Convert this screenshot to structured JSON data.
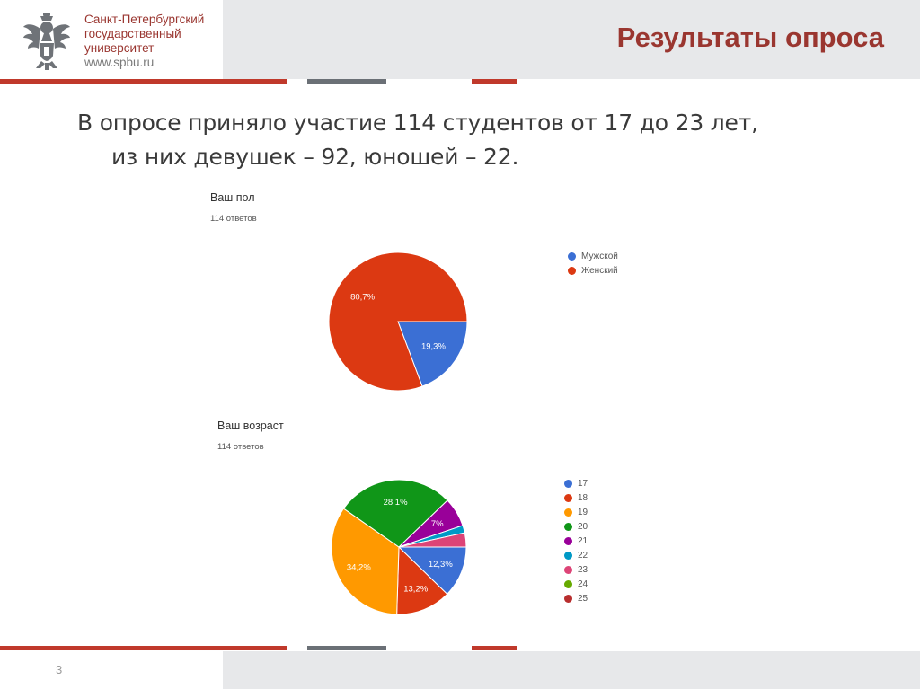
{
  "header": {
    "university_lines": [
      "Санкт-Петербургский",
      "государственный",
      "университет"
    ],
    "website": "www.spbu.ru",
    "slide_title": "Результаты опроса",
    "colors": {
      "brand_red": "#9a3630",
      "band_gray": "#e7e8ea",
      "stripe_red": "#c0392b",
      "stripe_gray": "#6b7076"
    }
  },
  "intro": {
    "line1": "В опросе приняло участие 114 студентов от 17 до 23 лет,",
    "line2": "из них девушек – 92, юношей – 22."
  },
  "chart_data": [
    {
      "type": "pie",
      "title": "Ваш пол",
      "subtitle": "114 ответов",
      "series": [
        {
          "name": "Мужской",
          "value": 19.3,
          "label": "19,3%",
          "color": "#3b6fd4"
        },
        {
          "name": "Женский",
          "value": 80.7,
          "label": "80,7%",
          "color": "#dc3912"
        }
      ]
    },
    {
      "type": "pie",
      "title": "Ваш возраст",
      "subtitle": "114 ответов",
      "series": [
        {
          "name": "17",
          "value": 12.3,
          "label": "12,3%",
          "color": "#3b6fd4"
        },
        {
          "name": "18",
          "value": 13.2,
          "label": "13,2%",
          "color": "#dc3912"
        },
        {
          "name": "19",
          "value": 34.2,
          "label": "34,2%",
          "color": "#ff9900"
        },
        {
          "name": "20",
          "value": 28.1,
          "label": "28,1%",
          "color": "#109618"
        },
        {
          "name": "21",
          "value": 7.0,
          "label": "7%",
          "color": "#990099"
        },
        {
          "name": "22",
          "value": 1.8,
          "label": "",
          "color": "#0099c6"
        },
        {
          "name": "23",
          "value": 3.4,
          "label": "",
          "color": "#dd4477"
        },
        {
          "name": "24",
          "value": 0,
          "label": "",
          "color": "#66aa00"
        },
        {
          "name": "25",
          "value": 0,
          "label": "",
          "color": "#b82e2e"
        }
      ]
    }
  ],
  "footer": {
    "page_number": "3"
  }
}
